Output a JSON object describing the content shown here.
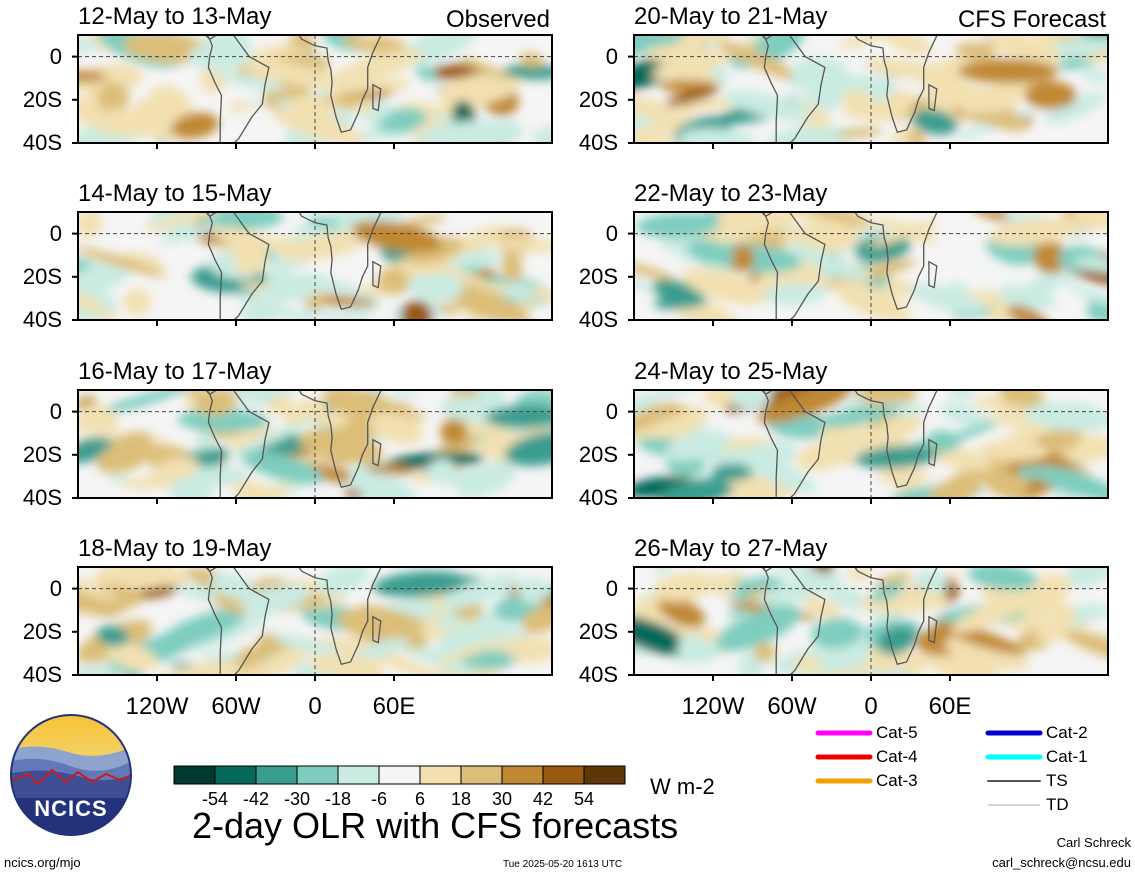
{
  "chart_data": {
    "type": "heatmap",
    "title": "2-day OLR with CFS forecasts",
    "units": "W m-2",
    "column_labels": [
      "Observed",
      "CFS Forecast"
    ],
    "y_ticks": [
      "0",
      "20S",
      "40S"
    ],
    "x_ticks": [
      "120W",
      "60W",
      "0",
      "60E"
    ],
    "panels": [
      {
        "period": "12-May to 13-May",
        "source": "Observed"
      },
      {
        "period": "14-May to 15-May",
        "source": "Observed"
      },
      {
        "period": "16-May to 17-May",
        "source": "Observed"
      },
      {
        "period": "18-May to 19-May",
        "source": "Observed"
      },
      {
        "period": "20-May to 21-May",
        "source": "CFS Forecast"
      },
      {
        "period": "22-May to 23-May",
        "source": "CFS Forecast"
      },
      {
        "period": "24-May to 25-May",
        "source": "CFS Forecast"
      },
      {
        "period": "26-May to 27-May",
        "source": "CFS Forecast"
      }
    ],
    "colorbar": {
      "ticks": [
        "-54",
        "-42",
        "-30",
        "-18",
        "-6",
        "6",
        "18",
        "30",
        "42",
        "54"
      ],
      "colors": [
        "#00392e",
        "#04695a",
        "#3a9d8f",
        "#7ecdbf",
        "#c9ebe2",
        "#f5f5f5",
        "#f2e0b1",
        "#dcbe78",
        "#c08832",
        "#9a5a12",
        "#5e3706"
      ]
    },
    "storm_legend": [
      {
        "label": "Cat-5",
        "color": "#ff00ff"
      },
      {
        "label": "Cat-4",
        "color": "#ee0000"
      },
      {
        "label": "Cat-3",
        "color": "#f0a000"
      },
      {
        "label": "Cat-2",
        "color": "#0000cc"
      },
      {
        "label": "Cat-1",
        "color": "#00ffff"
      },
      {
        "label": "TS",
        "color": "#555555"
      },
      {
        "label": "TD",
        "color": "#aaaaaa"
      }
    ]
  },
  "logo": {
    "text": "NCICS"
  },
  "footer": {
    "url": "ncics.org/mjo",
    "timestamp": "Tue 2025-05-20 1613 UTC",
    "author": "Carl Schreck",
    "email": "carl_schreck@ncsu.edu"
  }
}
